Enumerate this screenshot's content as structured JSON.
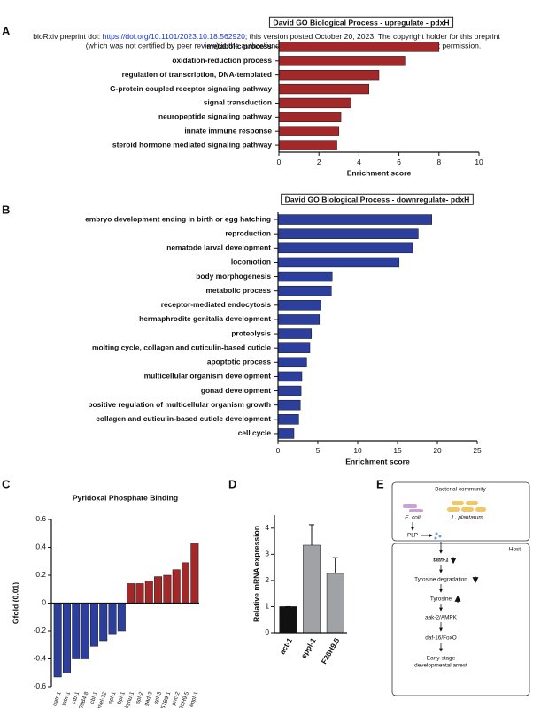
{
  "header": {
    "doi_prefix": "bioRxiv preprint doi: ",
    "doi_link": "https://doi.org/10.1101/2023.10.18.562920",
    "doi_suffix": "; this version posted October 20, 2023. The copyright holder for this preprint",
    "line2": "(which was not certified by peer review) is the author/funder. All rights reserved. No reuse allowed without permission."
  },
  "panel_labels": [
    "A",
    "B",
    "C",
    "D",
    "E"
  ],
  "chart_data": [
    {
      "type": "hbar",
      "title": "David GO Biological Process - upregulate - pdxH",
      "xlabel": "Enrichment score",
      "color": "#a3282a",
      "categories": [
        "metabolic process",
        "oxidation-reduction process",
        "regulation of transcription, DNA-templated",
        "G-protein coupled receptor signaling pathway",
        "signal transduction",
        "neuropeptide signaling pathway",
        "innate immune response",
        "steroid hormone mediated signaling pathway"
      ],
      "values": [
        8.0,
        6.3,
        5.0,
        4.5,
        3.6,
        3.1,
        3.0,
        2.9
      ],
      "xlim": [
        0,
        10
      ],
      "xticks": [
        0,
        2,
        4,
        6,
        8,
        10
      ]
    },
    {
      "type": "hbar",
      "title": "David GO Biological Process - downregulate- pdxH",
      "xlabel": "Enrichment score",
      "color": "#2c3f9c",
      "categories": [
        "embryo development ending in birth or egg hatching",
        "reproduction",
        "nematode larval development",
        "locomotion",
        "body morphogenesis",
        "metabolic process",
        "receptor-mediated endocytosis",
        "hermaphrodite genitalia development",
        "proteolysis",
        "molting cycle, collagen and cuticulin-based cuticle",
        "apoptotic process",
        "multicellular organism development",
        "gonad development",
        "positive regulation of multicellular organism growth",
        "collagen and cuticulin-based cuticle development",
        "cell cycle"
      ],
      "values": [
        19.3,
        17.6,
        16.9,
        15.2,
        6.8,
        6.7,
        5.4,
        5.2,
        4.2,
        4.0,
        3.6,
        3.0,
        2.9,
        2.8,
        2.6,
        2.0
      ],
      "xlim": [
        0,
        25
      ],
      "xticks": [
        0,
        5,
        10,
        15,
        20,
        25
      ]
    },
    {
      "type": "bar",
      "title": "Pyridoxal Phosphate Binding",
      "ylabel": "Gfold (0.01)",
      "categories": [
        "oatr-1",
        "tatn-1",
        "ctb-1",
        "T09B4.8",
        "cbl-1",
        "mel-32",
        "spl-1",
        "bpi-1",
        "kynu-1",
        "spl-2",
        "gad-3",
        "spl-3",
        "F57B9.1",
        "pnc-2",
        "F26H9.5",
        "eppl-1"
      ],
      "values": [
        -0.53,
        -0.5,
        -0.4,
        -0.4,
        -0.31,
        -0.27,
        -0.22,
        -0.2,
        0.14,
        0.14,
        0.16,
        0.19,
        0.2,
        0.24,
        0.29,
        0.43
      ],
      "colors": [
        "#2c3f9c",
        "#2c3f9c",
        "#2c3f9c",
        "#2c3f9c",
        "#2c3f9c",
        "#2c3f9c",
        "#2c3f9c",
        "#2c3f9c",
        "#a3282a",
        "#a3282a",
        "#a3282a",
        "#a3282a",
        "#a3282a",
        "#a3282a",
        "#a3282a",
        "#a3282a"
      ],
      "ylim": [
        -0.6,
        0.6
      ],
      "yticks": [
        -0.6,
        -0.4,
        -0.2,
        0,
        0.2,
        0.4,
        0.6
      ]
    },
    {
      "type": "bar",
      "ylabel": "Relative mRNA expression",
      "categories": [
        "act-1",
        "eppl-1",
        "F26H9.5"
      ],
      "values": [
        1.0,
        3.35,
        2.27
      ],
      "errors": [
        0,
        0.78,
        0.6
      ],
      "colors": [
        "#111111",
        "#a0a2a6",
        "#a0a2a6"
      ],
      "ylim": [
        0,
        4.5
      ],
      "yticks": [
        0,
        1,
        2,
        3,
        4
      ]
    }
  ],
  "diagram": {
    "community": "Bacterial community",
    "ecoli": "E. coli",
    "lplant": "L. plantarum",
    "plp": "PLP",
    "host": "Host",
    "tatn": "tatn-1",
    "tyrdeg": "Tyrosine degradation",
    "tyr": "Tyrosine",
    "aak": "aak-2/AMPK",
    "daf": "daf-16/FoxO",
    "arrest1": "Early-stage",
    "arrest2": "developmental arrest"
  }
}
